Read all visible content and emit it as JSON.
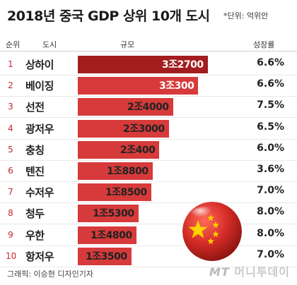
{
  "title": "2018년 중국 GDP 상위 10개 도시",
  "unit_note": "*단위: 억위안",
  "headers": {
    "rank": "순위",
    "city": "도시",
    "size": "규모",
    "growth": "성장률"
  },
  "credit": "그래픽: 이승현 디자인기자",
  "logo": {
    "mt": "MT",
    "text": "머니투데이"
  },
  "colors": {
    "bar_top": "#a31d1f",
    "bar": "#d63a3a",
    "rank": "#c3262d",
    "flag_red": "#d42c27",
    "flag_star": "#ffd200"
  },
  "chart_data": {
    "type": "bar",
    "orientation": "horizontal",
    "title": "2018년 중국 GDP 상위 10개 도시",
    "unit": "억위안",
    "rows": [
      {
        "rank": "1",
        "city": "상하이",
        "gdp": 32700,
        "gdp_label": "3조2700",
        "growth": "6.6%"
      },
      {
        "rank": "2",
        "city": "베이징",
        "gdp": 30300,
        "gdp_label": "3조300",
        "growth": "6.6%"
      },
      {
        "rank": "3",
        "city": "선전",
        "gdp": 24000,
        "gdp_label": "2조4000",
        "growth": "7.5%"
      },
      {
        "rank": "4",
        "city": "광저우",
        "gdp": 23000,
        "gdp_label": "2조3000",
        "growth": "6.5%"
      },
      {
        "rank": "5",
        "city": "충칭",
        "gdp": 20400,
        "gdp_label": "2조400",
        "growth": "6.0%"
      },
      {
        "rank": "6",
        "city": "텐진",
        "gdp": 18800,
        "gdp_label": "1조8800",
        "growth": "3.6%"
      },
      {
        "rank": "7",
        "city": "수저우",
        "gdp": 18500,
        "gdp_label": "1조8500",
        "growth": "7.0%"
      },
      {
        "rank": "8",
        "city": "청두",
        "gdp": 15300,
        "gdp_label": "1조5300",
        "growth": "8.0%"
      },
      {
        "rank": "9",
        "city": "우한",
        "gdp": 14800,
        "gdp_label": "1조4800",
        "growth": "8.0%"
      },
      {
        "rank": "10",
        "city": "항저우",
        "gdp": 13500,
        "gdp_label": "1조3500",
        "growth": "7.0%"
      }
    ]
  }
}
